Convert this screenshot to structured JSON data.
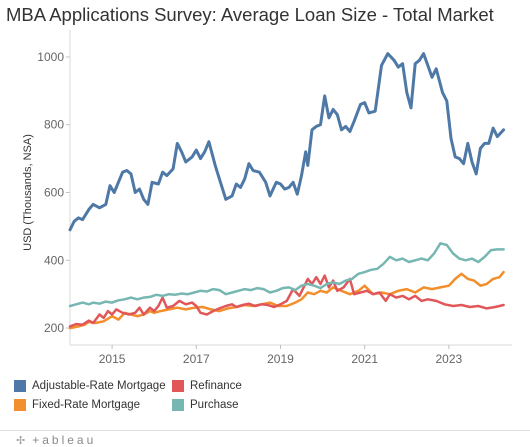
{
  "title": "MBA Applications Survey: Average Loan Size - Total Market",
  "chart_data": {
    "type": "line",
    "title": "MBA Applications Survey: Average Loan Size - Total Market",
    "xlabel": "",
    "ylabel": "USD (Thousands, NSA)",
    "xlim": [
      2014.0,
      2023.5
    ],
    "ylim": [
      150,
      1050
    ],
    "x_ticks": [
      2015,
      2017,
      2019,
      2021,
      2023
    ],
    "x_tick_labels": [
      "2015",
      "2017",
      "2019",
      "2021",
      "2023"
    ],
    "y_ticks": [
      200,
      400,
      600,
      800,
      1000
    ],
    "y_tick_labels": [
      "200",
      "400",
      "600",
      "800",
      "1000"
    ],
    "grid": "horizontal",
    "legend_position": "bottom",
    "series": [
      {
        "name": "Adjustable-Rate Mortgage",
        "color": "#4e79a7",
        "points": [
          [
            2014.0,
            490
          ],
          [
            2014.1,
            515
          ],
          [
            2014.2,
            525
          ],
          [
            2014.3,
            520
          ],
          [
            2014.45,
            550
          ],
          [
            2014.55,
            565
          ],
          [
            2014.7,
            555
          ],
          [
            2014.85,
            565
          ],
          [
            2014.95,
            620
          ],
          [
            2015.05,
            600
          ],
          [
            2015.15,
            630
          ],
          [
            2015.25,
            660
          ],
          [
            2015.35,
            665
          ],
          [
            2015.45,
            655
          ],
          [
            2015.55,
            600
          ],
          [
            2015.65,
            610
          ],
          [
            2015.75,
            580
          ],
          [
            2015.85,
            565
          ],
          [
            2015.95,
            630
          ],
          [
            2016.1,
            625
          ],
          [
            2016.2,
            660
          ],
          [
            2016.3,
            650
          ],
          [
            2016.45,
            670
          ],
          [
            2016.55,
            745
          ],
          [
            2016.65,
            720
          ],
          [
            2016.75,
            690
          ],
          [
            2016.9,
            705
          ],
          [
            2017.0,
            725
          ],
          [
            2017.1,
            700
          ],
          [
            2017.2,
            720
          ],
          [
            2017.3,
            750
          ],
          [
            2017.45,
            680
          ],
          [
            2017.55,
            640
          ],
          [
            2017.7,
            580
          ],
          [
            2017.85,
            590
          ],
          [
            2017.95,
            625
          ],
          [
            2018.05,
            615
          ],
          [
            2018.15,
            640
          ],
          [
            2018.25,
            685
          ],
          [
            2018.35,
            665
          ],
          [
            2018.5,
            660
          ],
          [
            2018.65,
            630
          ],
          [
            2018.75,
            590
          ],
          [
            2018.9,
            630
          ],
          [
            2019.0,
            625
          ],
          [
            2019.1,
            610
          ],
          [
            2019.2,
            615
          ],
          [
            2019.3,
            630
          ],
          [
            2019.4,
            595
          ],
          [
            2019.5,
            650
          ],
          [
            2019.6,
            720
          ],
          [
            2019.65,
            680
          ],
          [
            2019.75,
            785
          ],
          [
            2019.85,
            795
          ],
          [
            2019.95,
            800
          ],
          [
            2020.05,
            885
          ],
          [
            2020.15,
            820
          ],
          [
            2020.25,
            845
          ],
          [
            2020.35,
            830
          ],
          [
            2020.45,
            785
          ],
          [
            2020.55,
            795
          ],
          [
            2020.65,
            780
          ],
          [
            2020.75,
            810
          ],
          [
            2020.9,
            860
          ],
          [
            2021.0,
            865
          ],
          [
            2021.1,
            835
          ],
          [
            2021.25,
            840
          ],
          [
            2021.4,
            975
          ],
          [
            2021.55,
            1010
          ],
          [
            2021.7,
            990
          ],
          [
            2021.8,
            970
          ],
          [
            2021.9,
            980
          ],
          [
            2022.0,
            895
          ],
          [
            2022.1,
            850
          ],
          [
            2022.2,
            980
          ],
          [
            2022.3,
            990
          ],
          [
            2022.4,
            1010
          ],
          [
            2022.5,
            975
          ],
          [
            2022.6,
            940
          ],
          [
            2022.7,
            965
          ],
          [
            2022.85,
            895
          ],
          [
            2022.95,
            870
          ],
          [
            2023.05,
            760
          ],
          [
            2023.15,
            705
          ],
          [
            2023.25,
            700
          ],
          [
            2023.35,
            685
          ],
          [
            2023.45,
            745
          ],
          [
            2023.55,
            690
          ],
          [
            2023.65,
            655
          ],
          [
            2023.75,
            730
          ],
          [
            2023.85,
            745
          ],
          [
            2023.95,
            745
          ],
          [
            2024.05,
            790
          ],
          [
            2024.15,
            765
          ],
          [
            2024.3,
            785
          ]
        ]
      },
      {
        "name": "Fixed-Rate Mortgage",
        "color": "#f28e2b",
        "points": [
          [
            2014.0,
            200
          ],
          [
            2014.2,
            205
          ],
          [
            2014.35,
            210
          ],
          [
            2014.45,
            218
          ],
          [
            2014.6,
            215
          ],
          [
            2014.8,
            220
          ],
          [
            2015.0,
            235
          ],
          [
            2015.15,
            225
          ],
          [
            2015.3,
            245
          ],
          [
            2015.45,
            240
          ],
          [
            2015.6,
            235
          ],
          [
            2015.75,
            240
          ],
          [
            2015.9,
            250
          ],
          [
            2016.0,
            245
          ],
          [
            2016.15,
            250
          ],
          [
            2016.35,
            255
          ],
          [
            2016.55,
            260
          ],
          [
            2016.75,
            255
          ],
          [
            2016.95,
            260
          ],
          [
            2017.15,
            262
          ],
          [
            2017.35,
            255
          ],
          [
            2017.55,
            250
          ],
          [
            2017.75,
            258
          ],
          [
            2017.95,
            262
          ],
          [
            2018.15,
            268
          ],
          [
            2018.35,
            265
          ],
          [
            2018.55,
            270
          ],
          [
            2018.75,
            275
          ],
          [
            2018.95,
            265
          ],
          [
            2019.15,
            265
          ],
          [
            2019.35,
            275
          ],
          [
            2019.5,
            285
          ],
          [
            2019.65,
            305
          ],
          [
            2019.8,
            300
          ],
          [
            2019.95,
            310
          ],
          [
            2020.1,
            305
          ],
          [
            2020.25,
            320
          ],
          [
            2020.45,
            310
          ],
          [
            2020.65,
            300
          ],
          [
            2020.85,
            310
          ],
          [
            2021.0,
            325
          ],
          [
            2021.2,
            300
          ],
          [
            2021.4,
            305
          ],
          [
            2021.6,
            300
          ],
          [
            2021.8,
            310
          ],
          [
            2022.0,
            315
          ],
          [
            2022.2,
            305
          ],
          [
            2022.4,
            320
          ],
          [
            2022.6,
            315
          ],
          [
            2022.8,
            320
          ],
          [
            2023.0,
            325
          ],
          [
            2023.15,
            345
          ],
          [
            2023.3,
            360
          ],
          [
            2023.45,
            345
          ],
          [
            2023.6,
            340
          ],
          [
            2023.75,
            325
          ],
          [
            2023.9,
            330
          ],
          [
            2024.05,
            345
          ],
          [
            2024.2,
            350
          ],
          [
            2024.3,
            365
          ]
        ]
      },
      {
        "name": "Refinance",
        "color": "#e15759",
        "points": [
          [
            2014.0,
            205
          ],
          [
            2014.15,
            212
          ],
          [
            2014.3,
            210
          ],
          [
            2014.45,
            222
          ],
          [
            2014.55,
            215
          ],
          [
            2014.7,
            240
          ],
          [
            2014.8,
            230
          ],
          [
            2014.9,
            250
          ],
          [
            2015.0,
            240
          ],
          [
            2015.1,
            255
          ],
          [
            2015.25,
            245
          ],
          [
            2015.4,
            240
          ],
          [
            2015.55,
            245
          ],
          [
            2015.65,
            260
          ],
          [
            2015.75,
            240
          ],
          [
            2015.9,
            260
          ],
          [
            2016.0,
            250
          ],
          [
            2016.1,
            265
          ],
          [
            2016.2,
            290
          ],
          [
            2016.3,
            260
          ],
          [
            2016.45,
            265
          ],
          [
            2016.6,
            280
          ],
          [
            2016.75,
            270
          ],
          [
            2016.9,
            275
          ],
          [
            2017.0,
            265
          ],
          [
            2017.1,
            245
          ],
          [
            2017.25,
            240
          ],
          [
            2017.4,
            250
          ],
          [
            2017.55,
            258
          ],
          [
            2017.7,
            265
          ],
          [
            2017.85,
            270
          ],
          [
            2017.95,
            262
          ],
          [
            2018.1,
            268
          ],
          [
            2018.25,
            272
          ],
          [
            2018.4,
            265
          ],
          [
            2018.55,
            270
          ],
          [
            2018.7,
            268
          ],
          [
            2018.85,
            262
          ],
          [
            2019.0,
            270
          ],
          [
            2019.15,
            280
          ],
          [
            2019.3,
            315
          ],
          [
            2019.45,
            295
          ],
          [
            2019.55,
            320
          ],
          [
            2019.65,
            345
          ],
          [
            2019.75,
            330
          ],
          [
            2019.85,
            350
          ],
          [
            2019.95,
            330
          ],
          [
            2020.05,
            355
          ],
          [
            2020.15,
            320
          ],
          [
            2020.25,
            340
          ],
          [
            2020.35,
            310
          ],
          [
            2020.5,
            320
          ],
          [
            2020.65,
            345
          ],
          [
            2020.75,
            300
          ],
          [
            2020.9,
            305
          ],
          [
            2021.05,
            310
          ],
          [
            2021.2,
            300
          ],
          [
            2021.35,
            305
          ],
          [
            2021.5,
            280
          ],
          [
            2021.6,
            300
          ],
          [
            2021.75,
            290
          ],
          [
            2021.9,
            295
          ],
          [
            2022.05,
            285
          ],
          [
            2022.2,
            295
          ],
          [
            2022.35,
            280
          ],
          [
            2022.5,
            285
          ],
          [
            2022.7,
            280
          ],
          [
            2022.9,
            270
          ],
          [
            2023.1,
            265
          ],
          [
            2023.3,
            268
          ],
          [
            2023.5,
            262
          ],
          [
            2023.7,
            265
          ],
          [
            2023.9,
            258
          ],
          [
            2024.1,
            262
          ],
          [
            2024.3,
            268
          ]
        ]
      },
      {
        "name": "Purchase",
        "color": "#76b7b2",
        "points": [
          [
            2014.0,
            265
          ],
          [
            2014.15,
            270
          ],
          [
            2014.3,
            275
          ],
          [
            2014.45,
            270
          ],
          [
            2014.55,
            275
          ],
          [
            2014.7,
            272
          ],
          [
            2014.85,
            278
          ],
          [
            2015.0,
            275
          ],
          [
            2015.15,
            282
          ],
          [
            2015.3,
            285
          ],
          [
            2015.45,
            290
          ],
          [
            2015.6,
            285
          ],
          [
            2015.75,
            290
          ],
          [
            2015.9,
            292
          ],
          [
            2016.05,
            298
          ],
          [
            2016.2,
            295
          ],
          [
            2016.35,
            300
          ],
          [
            2016.5,
            298
          ],
          [
            2016.65,
            302
          ],
          [
            2016.8,
            300
          ],
          [
            2016.95,
            305
          ],
          [
            2017.1,
            310
          ],
          [
            2017.25,
            308
          ],
          [
            2017.4,
            315
          ],
          [
            2017.55,
            312
          ],
          [
            2017.7,
            300
          ],
          [
            2017.85,
            305
          ],
          [
            2018.0,
            310
          ],
          [
            2018.15,
            315
          ],
          [
            2018.3,
            312
          ],
          [
            2018.45,
            318
          ],
          [
            2018.6,
            315
          ],
          [
            2018.75,
            305
          ],
          [
            2018.9,
            310
          ],
          [
            2019.05,
            318
          ],
          [
            2019.2,
            320
          ],
          [
            2019.35,
            312
          ],
          [
            2019.5,
            325
          ],
          [
            2019.65,
            330
          ],
          [
            2019.8,
            325
          ],
          [
            2019.95,
            318
          ],
          [
            2020.1,
            330
          ],
          [
            2020.25,
            335
          ],
          [
            2020.4,
            330
          ],
          [
            2020.55,
            340
          ],
          [
            2020.7,
            345
          ],
          [
            2020.85,
            360
          ],
          [
            2021.0,
            365
          ],
          [
            2021.15,
            372
          ],
          [
            2021.3,
            375
          ],
          [
            2021.45,
            390
          ],
          [
            2021.6,
            410
          ],
          [
            2021.75,
            400
          ],
          [
            2021.9,
            405
          ],
          [
            2022.05,
            395
          ],
          [
            2022.2,
            400
          ],
          [
            2022.35,
            405
          ],
          [
            2022.5,
            400
          ],
          [
            2022.65,
            420
          ],
          [
            2022.8,
            450
          ],
          [
            2022.95,
            445
          ],
          [
            2023.1,
            420
          ],
          [
            2023.25,
            405
          ],
          [
            2023.4,
            400
          ],
          [
            2023.55,
            405
          ],
          [
            2023.7,
            395
          ],
          [
            2023.85,
            410
          ],
          [
            2024.0,
            430
          ],
          [
            2024.15,
            432
          ],
          [
            2024.3,
            432
          ]
        ]
      }
    ],
    "legend": [
      "Adjustable-Rate Mortgage",
      "Refinance",
      "Fixed-Rate Mortgage",
      "Purchase"
    ]
  },
  "footer": {
    "brand": "+ableau"
  }
}
